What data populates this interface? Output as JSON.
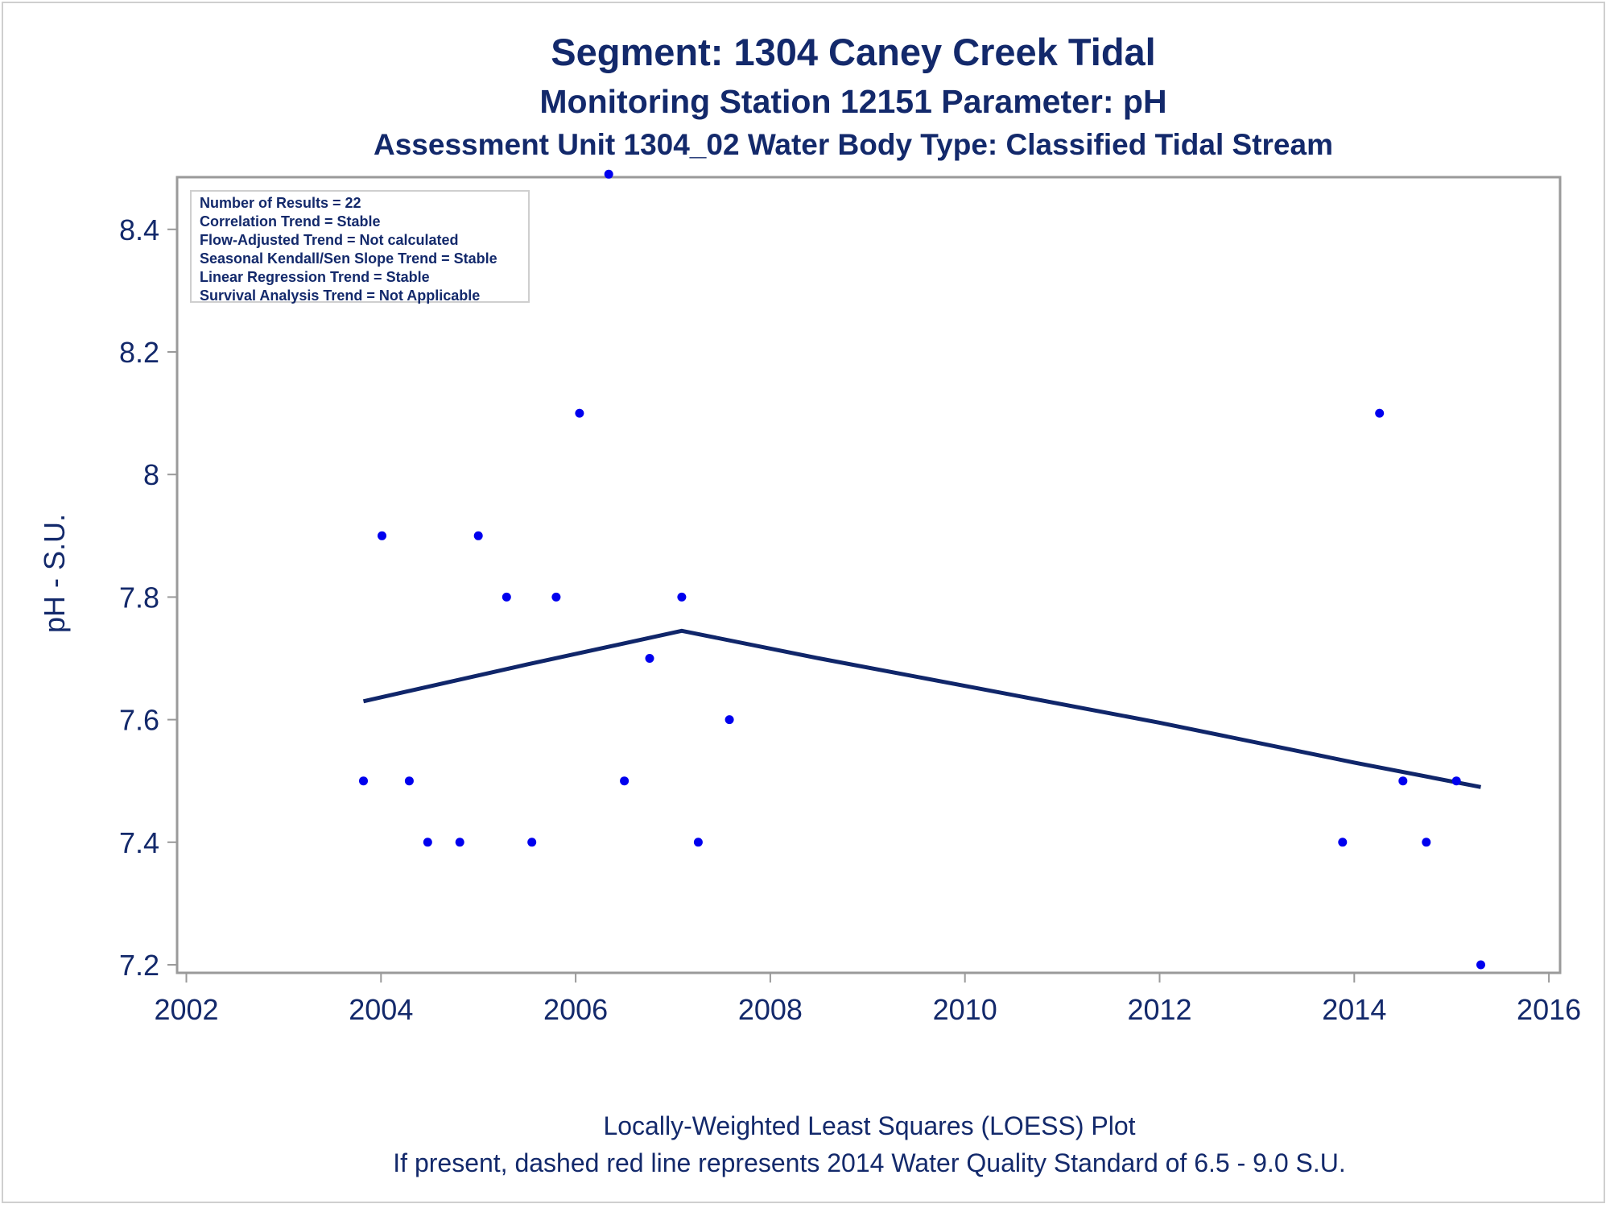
{
  "titles": {
    "line1": "Segment: 1304  Caney Creek Tidal",
    "line2": "Monitoring Station 12151 Parameter: pH",
    "line3": "Assessment Unit 1304_02   Water Body Type: Classified Tidal Stream"
  },
  "stats": [
    "Number of Results = 22",
    "Correlation Trend = Stable",
    "Flow-Adjusted Trend = Not calculated",
    "Seasonal Kendall/Sen Slope Trend = Stable",
    "Linear Regression Trend = Stable",
    "Survival Analysis Trend = Not Applicable"
  ],
  "footer": {
    "line1": "Locally-Weighted Least Squares (LOESS) Plot",
    "line2": "If present, dashed red line represents 2014 Water Quality Standard of 6.5 - 9.0 S.U."
  },
  "colors": {
    "text": "#13296b",
    "points": "#0000ee",
    "loess": "#10266a",
    "axis": "#9a9a9a"
  },
  "chart_data": {
    "type": "scatter",
    "title": "Segment: 1304  Caney Creek Tidal",
    "xlabel": "",
    "ylabel": "pH - S.U.",
    "xlim": [
      2002,
      2016
    ],
    "ylim": [
      7.18,
      8.52
    ],
    "xticks": [
      2002,
      2004,
      2006,
      2008,
      2010,
      2012,
      2014,
      2016
    ],
    "yticks": [
      7.2,
      7.4,
      7.6,
      7.8,
      8.0,
      8.2,
      8.4
    ],
    "ytick_labels": [
      "7.2",
      "7.4",
      "7.6",
      "7.8",
      "8",
      "8.2",
      "8.4"
    ],
    "grid": false,
    "series": [
      {
        "points": [
          [
            2003.82,
            7.5
          ],
          [
            2004.01,
            7.9
          ],
          [
            2004.29,
            7.5
          ],
          [
            2004.48,
            7.4
          ],
          [
            2004.81,
            7.4
          ],
          [
            2005.0,
            7.9
          ],
          [
            2005.29,
            7.8
          ],
          [
            2005.55,
            7.4
          ],
          [
            2005.8,
            7.8
          ],
          [
            2006.04,
            8.1
          ],
          [
            2006.34,
            8.49
          ],
          [
            2006.5,
            7.5
          ],
          [
            2006.76,
            7.7
          ],
          [
            2007.09,
            7.8
          ],
          [
            2007.26,
            7.4
          ],
          [
            2007.58,
            7.6
          ],
          [
            2013.88,
            7.4
          ],
          [
            2014.26,
            8.1
          ],
          [
            2014.5,
            7.5
          ],
          [
            2014.74,
            7.4
          ],
          [
            2015.05,
            7.5
          ],
          [
            2015.3,
            7.2
          ]
        ]
      },
      {
        "line": [
          [
            2003.82,
            7.63
          ],
          [
            2005.5,
            7.69
          ],
          [
            2007.09,
            7.745
          ],
          [
            2008.5,
            7.7
          ],
          [
            2010.0,
            7.655
          ],
          [
            2012.0,
            7.595
          ],
          [
            2014.0,
            7.53
          ],
          [
            2015.3,
            7.49
          ]
        ]
      }
    ]
  }
}
